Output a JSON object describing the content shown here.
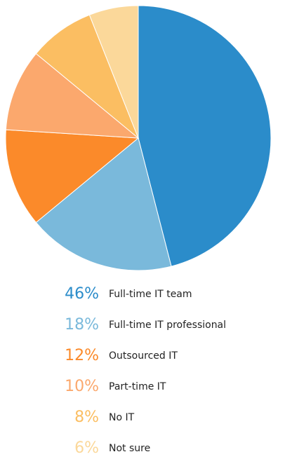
{
  "chart_data": {
    "type": "pie",
    "categories": [
      "Full-time IT team",
      "Full-time IT professional",
      "Outsourced IT",
      "Part-time IT",
      "No IT",
      "Not sure"
    ],
    "values": [
      46,
      18,
      12,
      10,
      8,
      6
    ],
    "value_labels": [
      "46%",
      "18%",
      "12%",
      "10%",
      "8%",
      "6%"
    ],
    "colors": [
      "#2b8cca",
      "#7ab9db",
      "#fb8a2a",
      "#fba86d",
      "#fbbe62",
      "#fbd89a"
    ],
    "start_angle": "12 o'clock",
    "direction": "clockwise",
    "legend_placement": "bottom"
  }
}
